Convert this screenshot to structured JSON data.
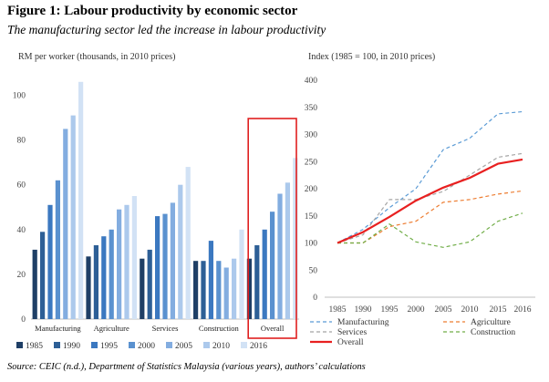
{
  "figure": {
    "title": "Figure 1: Labour productivity by economic sector",
    "subtitle": "The manufacturing sector led the increase in labour productivity",
    "source": "Source: CEIC (n.d.), Department of Statistics Malaysia (various years), authors’ calculations"
  },
  "colors": {
    "highlight_box": "#e02020",
    "bar_series": [
      "#1f3f66",
      "#2d5f96",
      "#3b78c0",
      "#5a91cf",
      "#83ade0",
      "#acc9ec",
      "#d2e2f5"
    ],
    "manufacturing": "#5b9bd5",
    "agriculture": "#ed7d31",
    "services": "#a5a5a5",
    "construction": "#70ad47",
    "overall": "#e82020"
  },
  "chart_data": [
    {
      "type": "bar",
      "title": "RM per worker (thousands, in 2010 prices)",
      "xlabel": "",
      "ylabel": "RM per worker (thousands, in 2010 prices)",
      "ylim": [
        0,
        110
      ],
      "yticks": [
        0,
        20,
        40,
        60,
        80,
        100
      ],
      "grid": false,
      "legend_position": "bottom",
      "highlighted_category": "Overall",
      "categories": [
        "Manufacturing",
        "Agriculture",
        "Services",
        "Construction",
        "Overall"
      ],
      "series": [
        {
          "name": "1985",
          "values": [
            31,
            28,
            27,
            26,
            27
          ]
        },
        {
          "name": "1990",
          "values": [
            39,
            33,
            31,
            26,
            33
          ]
        },
        {
          "name": "1995",
          "values": [
            51,
            37,
            46,
            35,
            40
          ]
        },
        {
          "name": "2000",
          "values": [
            62,
            40,
            47,
            26,
            48
          ]
        },
        {
          "name": "2005",
          "values": [
            85,
            49,
            52,
            23,
            56
          ]
        },
        {
          "name": "2010",
          "values": [
            91,
            51,
            60,
            27,
            61
          ]
        },
        {
          "name": "2016",
          "values": [
            106,
            55,
            68,
            40,
            72
          ]
        }
      ]
    },
    {
      "type": "line",
      "title": "Index (1985 = 100, in 2010 prices)",
      "xlabel": "",
      "ylabel": "Index (1985 = 100, in 2010 prices)",
      "ylim": [
        0,
        400
      ],
      "yticks": [
        0,
        50,
        100,
        150,
        200,
        250,
        300,
        350,
        400
      ],
      "grid": false,
      "legend_position": "bottom",
      "x": [
        "1985",
        "1990",
        "1995",
        "2000",
        "2005",
        "2010",
        "2015",
        "2016"
      ],
      "series": [
        {
          "name": "Manufacturing",
          "style": "dashed",
          "values": [
            100,
            125,
            165,
            200,
            272,
            293,
            338,
            342
          ]
        },
        {
          "name": "Agriculture",
          "style": "dashed",
          "values": [
            100,
            100,
            130,
            140,
            175,
            180,
            190,
            196
          ]
        },
        {
          "name": "Services",
          "style": "dashed",
          "values": [
            100,
            115,
            180,
            180,
            195,
            225,
            258,
            265
          ]
        },
        {
          "name": "Construction",
          "style": "dashed",
          "values": [
            100,
            100,
            135,
            102,
            92,
            102,
            140,
            155
          ]
        },
        {
          "name": "Overall",
          "style": "solid",
          "values": [
            100,
            120,
            148,
            178,
            202,
            220,
            246,
            254
          ]
        }
      ]
    }
  ]
}
